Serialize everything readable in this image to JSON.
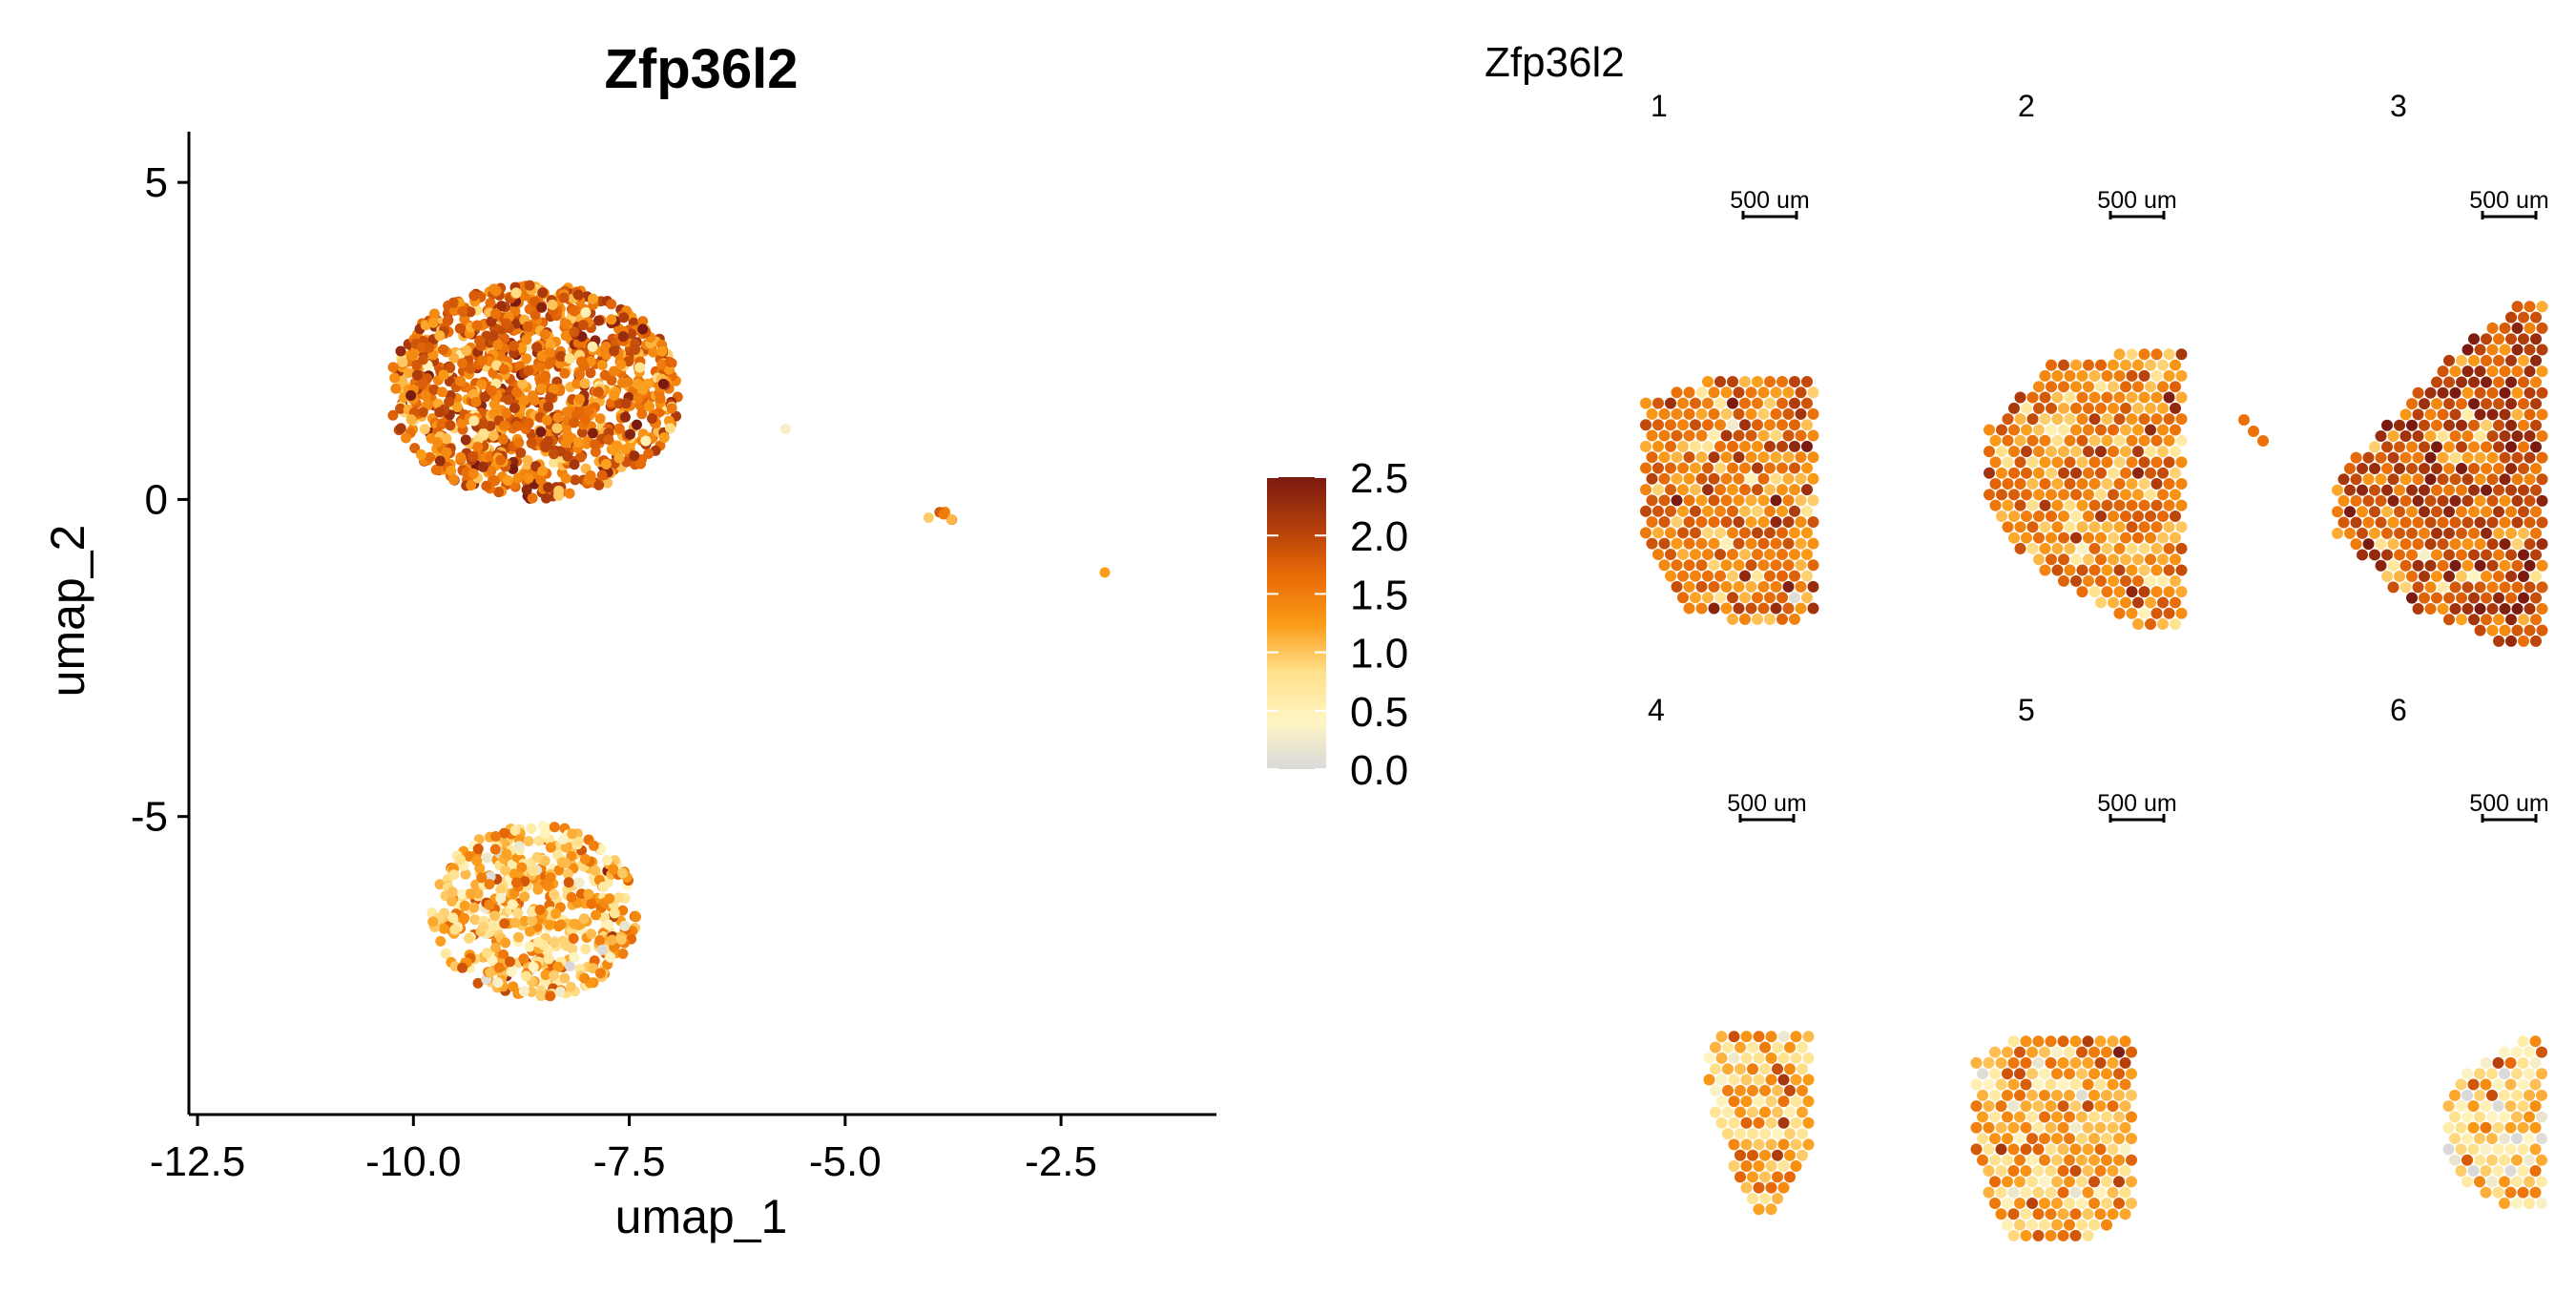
{
  "umap_panel": {
    "title": "Zfp36l2",
    "xlabel": "umap_1",
    "ylabel": "umap_2",
    "xlim": [
      -12.6,
      -0.7
    ],
    "ylim": [
      -9.7,
      5.8
    ],
    "xticks": [
      -12.5,
      -10.0,
      -7.5,
      -5.0,
      -2.5
    ],
    "xtick_labels": [
      "-12.5",
      "-10.0",
      "-7.5",
      "-5.0",
      "-2.5"
    ],
    "yticks": [
      5,
      0,
      -5
    ],
    "ytick_labels": [
      "5",
      "0",
      "-5"
    ]
  },
  "legend": {
    "min": 0.0,
    "max": 2.5,
    "ticks": [
      2.5,
      2.0,
      1.5,
      1.0,
      0.5,
      0.0
    ],
    "tick_labels": [
      "2.5",
      "2.0",
      "1.5",
      "1.0",
      "0.5",
      "0.0"
    ],
    "gradient": [
      "#d9d9d9",
      "#fff5c2",
      "#ffe08a",
      "#fb9a16",
      "#e86a07",
      "#b13d0b",
      "#7a1a10"
    ]
  },
  "spatial_panel": {
    "title": "Zfp36l2",
    "scale_bar_label": "500 um",
    "sections": [
      {
        "label": "1",
        "mean_expression": 1.5
      },
      {
        "label": "2",
        "mean_expression": 1.4
      },
      {
        "label": "3",
        "mean_expression": 1.8
      },
      {
        "label": "4",
        "mean_expression": 1.1
      },
      {
        "label": "5",
        "mean_expression": 1.2
      },
      {
        "label": "6",
        "mean_expression": 0.9
      }
    ]
  },
  "chart_data": [
    {
      "type": "scatter",
      "title": "Zfp36l2",
      "xlabel": "umap_1",
      "ylabel": "umap_2",
      "xlim": [
        -12.6,
        -0.7
      ],
      "ylim": [
        -9.7,
        5.8
      ],
      "color_scale": {
        "min": 0.0,
        "max": 2.5
      },
      "clusters": [
        {
          "center": [
            -8.6,
            1.7
          ],
          "spread": [
            1.35,
            1.35
          ],
          "count": 1100,
          "mean_expression": 1.6
        },
        {
          "center": [
            -8.6,
            -6.5
          ],
          "spread": [
            0.95,
            1.1
          ],
          "count": 520,
          "mean_expression": 1.05
        },
        {
          "center": [
            -3.9,
            -0.25
          ],
          "spread": [
            0.08,
            0.06
          ],
          "count": 6,
          "mean_expression": 1.6
        },
        {
          "center": [
            -2.0,
            -1.15
          ],
          "spread": [
            0.01,
            0.01
          ],
          "count": 1,
          "mean_expression": 1.2
        },
        {
          "center": [
            -5.7,
            1.1
          ],
          "spread": [
            0.01,
            0.01
          ],
          "count": 1,
          "mean_expression": 0.6
        }
      ]
    },
    {
      "type": "scatter",
      "title": "Zfp36l2",
      "panels": [
        "1",
        "2",
        "3",
        "4",
        "5",
        "6"
      ],
      "color_scale": {
        "min": 0.0,
        "max": 2.5
      },
      "scale_bar_label": "500 um"
    }
  ]
}
